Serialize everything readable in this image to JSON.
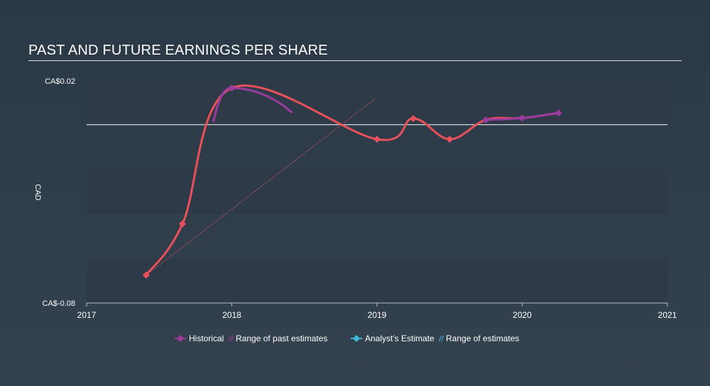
{
  "chart_data": {
    "type": "line",
    "title": "PAST AND FUTURE EARNINGS PER SHARE",
    "ylabel": "CAD",
    "xlabel": "",
    "xlim": [
      2017,
      2021
    ],
    "ylim": [
      -0.08,
      0.02
    ],
    "x_ticks": [
      2017,
      2018,
      2019,
      2020,
      2021
    ],
    "x_tick_labels": [
      "2017",
      "2018",
      "2019",
      "2020",
      "2021"
    ],
    "y_tick_labels": {
      "top": "CA$0.02",
      "bottom": "CA$-0.08"
    },
    "reference_line": 0,
    "series": [
      {
        "name": "Historical",
        "color": "#e9515a",
        "highlight_color": "#9b3b9e",
        "x": [
          2017.41,
          2017.66,
          2018.0,
          2019.0,
          2019.25,
          2019.5,
          2019.75,
          2020.0,
          2020.25
        ],
        "y": [
          -0.0675,
          -0.0445,
          0.0165,
          -0.0065,
          0.0028,
          -0.0065,
          0.0022,
          0.003,
          0.0053
        ]
      },
      {
        "name": "Range of past estimates",
        "color": "#c8576a",
        "style": "dashed",
        "x": [
          2017.41,
          2018.99
        ],
        "y": [
          -0.0675,
          0.0118
        ]
      }
    ],
    "legend": [
      {
        "label": "Historical",
        "color": "#9b3b9e",
        "marker": "diamond"
      },
      {
        "label": "Range of past estimates",
        "color": "#9b3b9e",
        "marker": "hatch"
      },
      {
        "label": "Analyst's Estimate",
        "color": "#3fb7d9",
        "marker": "diamond"
      },
      {
        "label": "Range of estimates",
        "color": "#3fb7d9",
        "marker": "hatch"
      }
    ]
  }
}
